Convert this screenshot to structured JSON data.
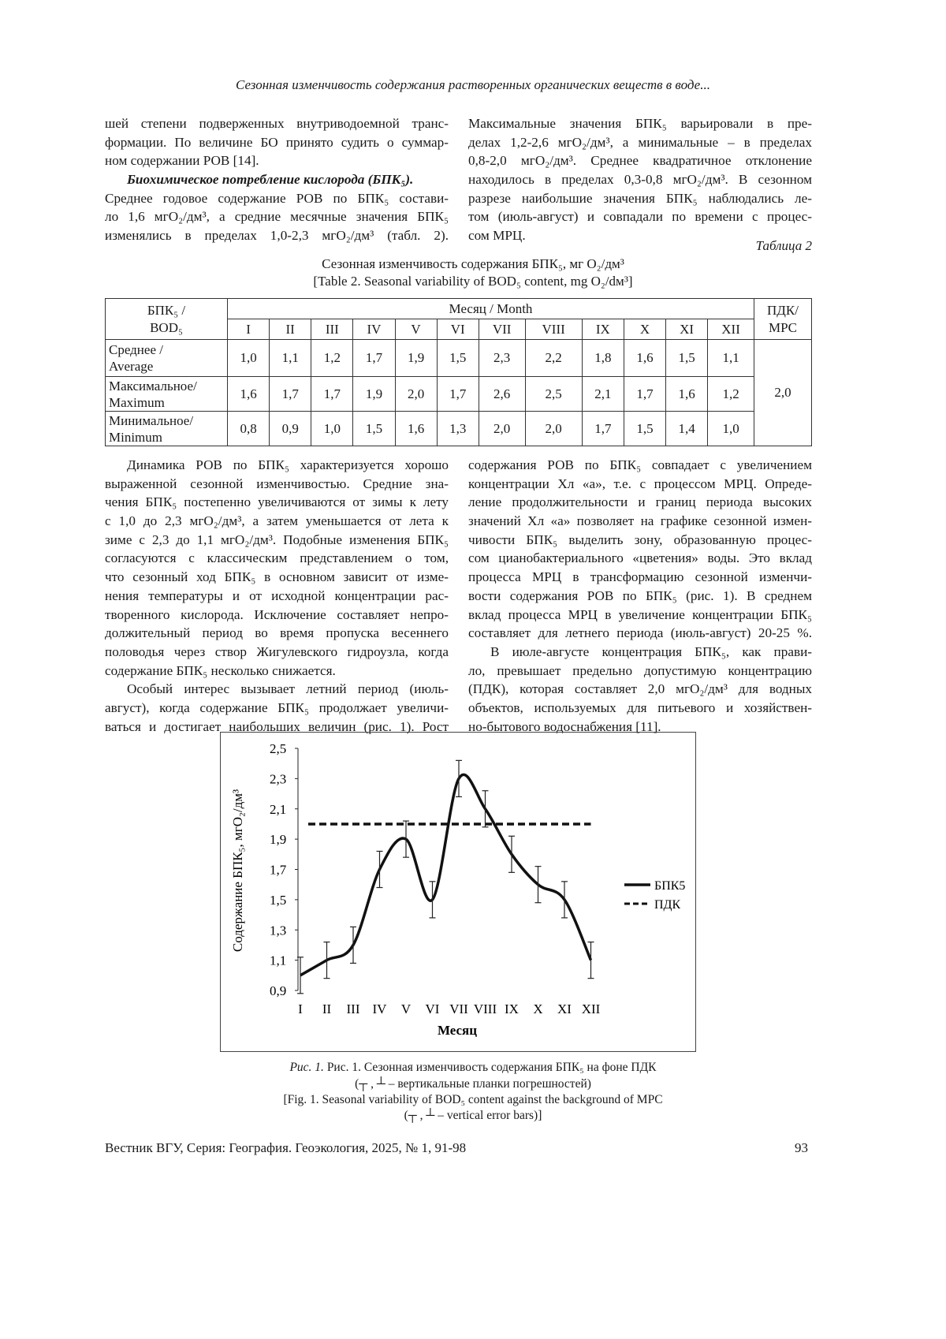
{
  "running_header": "Сезонная изменчивость содержания растворенных органических веществ в воде...",
  "left1": [
    "шей степени подверженных внутриводоемной транс-",
    "формации. По величине БО принято судить о суммар-",
    "ном содержании РОВ [14].",
    "Биохимическое потребление кислорода (БПК₅).",
    "Среднее годовое содержание РОВ по БПК₅ состави-",
    "ло 1,6 мгO₂/дм³, а средние месячные значения БПК₅",
    "изменялись в пределах 1,0-2,3 мгO₂/дм³ (табл. 2)."
  ],
  "right1": [
    "Максимальные значения БПК₅ варьировали в пре-",
    "делах 1,2-2,6 мгO₂/дм³, а минимальные – в пределах",
    "0,8-2,0 мгO₂/дм³. Среднее квадратичное отклонение",
    "находилось в пределах 0,3-0,8 мгO₂/дм³. В сезонном",
    "разрезе наибольшие значения БПК₅ наблюдались ле-",
    "том (июль-август) и совпадали по времени с процес-",
    "сом МРЦ."
  ],
  "table": {
    "label": "Таблица 2",
    "caption_ru": "Сезонная изменчивость содержания БПК₅, мг O₂/дм³",
    "caption_en": "[Table 2. Seasonal variability of BOD₅ content, mg O₂/dм³]",
    "corner": [
      "БПК₅ /",
      "BOD₅"
    ],
    "month_header": "Месяц / Month",
    "pdk_header": [
      "ПДК/",
      "MPC"
    ],
    "months": [
      "I",
      "II",
      "III",
      "IV",
      "V",
      "VI",
      "VII",
      "VIII",
      "IX",
      "X",
      "XI",
      "XII"
    ],
    "rows": [
      {
        "label": [
          "Среднее /",
          "Average"
        ],
        "values": [
          "1,0",
          "1,1",
          "1,2",
          "1,7",
          "1,9",
          "1,5",
          "2,3",
          "2,2",
          "1,8",
          "1,6",
          "1,5",
          "1,1"
        ]
      },
      {
        "label": [
          "Максимальное/",
          "Maximum"
        ],
        "values": [
          "1,6",
          "1,7",
          "1,7",
          "1,9",
          "2,0",
          "1,7",
          "2,6",
          "2,5",
          "2,1",
          "1,7",
          "1,6",
          "1,2"
        ]
      },
      {
        "label": [
          "Минимальное/",
          "Minimum"
        ],
        "values": [
          "0,8",
          "0,9",
          "1,0",
          "1,5",
          "1,6",
          "1,3",
          "2,0",
          "2,0",
          "1,7",
          "1,5",
          "1,4",
          "1,0"
        ]
      }
    ],
    "pdk_value": "2,0"
  },
  "left2": [
    "Динамика РОВ по БПК₅ характеризуется хорошо",
    "выраженной сезонной изменчивостью. Средние зна-",
    "чения БПК₅ постепенно увеличиваются от зимы к лету",
    "с 1,0 до 2,3 мгO₂/дм³, а затем уменьшается от лета к",
    "зиме с 2,3 до 1,1 мгO₂/дм³. Подобные изменения БПК₅",
    "согласуются с классическим представлением о том,",
    "что сезонный ход БПК₅ в основном зависит от изме-",
    "нения температуры и от исходной концентрации рас-",
    "творенного кислорода. Исключение составляет непро-",
    "должительный период во время пропуска весеннего",
    "половодья через створ Жигулевского гидроузла, когда",
    "содержание БПК₅ несколько снижается.",
    "Особый интерес вызывает летний период (июль-",
    "август), когда содержание БПК₅ продолжает увеличи-",
    "ваться и достигает наибольших величин (рис. 1). Рост"
  ],
  "right2": [
    "содержания РОВ по БПК₅ совпадает с увеличением",
    "концентрации Хл «а», т.е. с процессом МРЦ. Опреде-",
    "ление продолжительности и границ периода высоких",
    "значений Хл «а» позволяет на графике сезонной измен-",
    "чивости БПК₅ выделить зону, образованную процес-",
    "сом цианобактериального «цветения» воды. Это вклад",
    "процесса МРЦ в трансформацию сезонной изменчи-",
    "вости содержания РОВ по БПК₅ (рис. 1). В среднем",
    "вклад процесса МРЦ в увеличение концентрации БПК₅",
    "составляет для летнего периода (июль-август) 20-25 %.",
    "В июле-августе концентрация БПК₅, как прави-",
    "ло, превышает предельно допустимую концентрацию",
    "(ПДК), которая составляет 2,0 мгO₂/дм³ для водных",
    "объектов, используемых для питьевого и хозяйствен-",
    "но-бытового водоснабжения [11]."
  ],
  "chart_data": {
    "type": "line",
    "x": [
      "I",
      "II",
      "III",
      "IV",
      "V",
      "VI",
      "VII",
      "VIII",
      "IX",
      "X",
      "XI",
      "XII"
    ],
    "series": [
      {
        "name": "БПК5",
        "values": [
          1.0,
          1.1,
          1.2,
          1.7,
          1.9,
          1.5,
          2.3,
          2.1,
          1.8,
          1.6,
          1.5,
          1.1
        ],
        "error": 0.12,
        "style": "solid"
      },
      {
        "name": "ПДК",
        "values": [
          2.0,
          2.0,
          2.0,
          2.0,
          2.0,
          2.0,
          2.0,
          2.0,
          2.0,
          2.0,
          2.0,
          2.0
        ],
        "style": "dashed"
      }
    ],
    "xlabel": "Месяц",
    "ylabel": "Содержание БПК₅, мгO₂/дм³",
    "ylim": [
      0.9,
      2.5
    ],
    "yticks": [
      "0,9",
      "1,1",
      "1,3",
      "1,5",
      "1,7",
      "1,9",
      "2,1",
      "2,3",
      "2,5"
    ],
    "grid": false,
    "legend": "right"
  },
  "figure_caption": [
    "Рис. 1. Сезонная изменчивость содержания БПК₅ на фоне ПДК",
    "(┬ , ┴ – вертикальные планки погрешностей)",
    "[Fig. 1. Seasonal variability of BOD₅ content against the background of MPC",
    "(┬ , ┴ – vertical error bars)]"
  ],
  "footer": {
    "journal": "Вестник ВГУ, Серия: География. Геоэкология, 2025, № 1, 91-98",
    "page": "93"
  }
}
